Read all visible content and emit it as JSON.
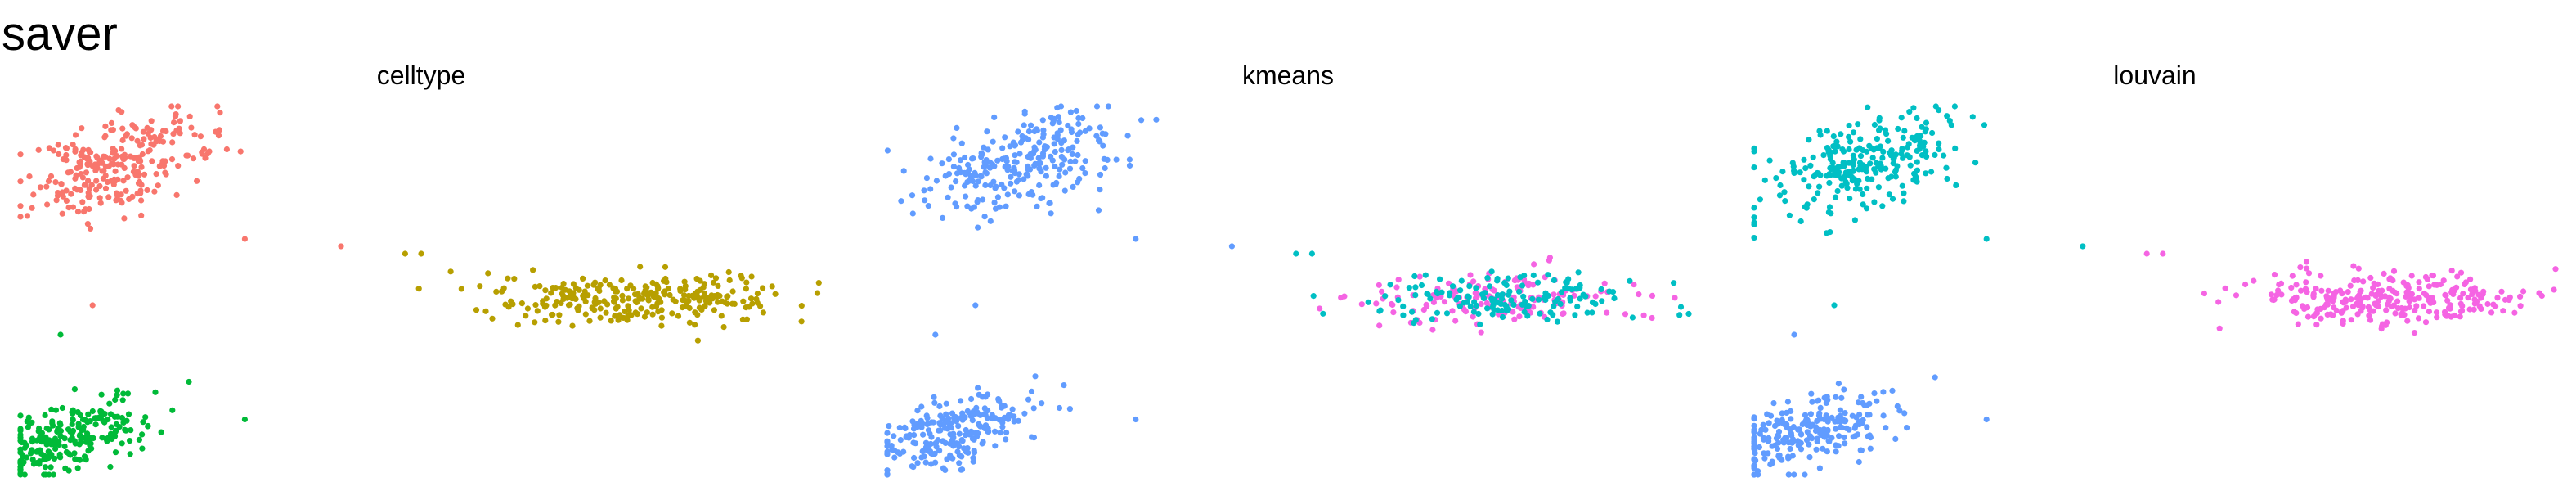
{
  "figure": {
    "title": "saver"
  },
  "colors": {
    "red": "#F8766D",
    "olive": "#B79F00",
    "green": "#00BA38",
    "blue": "#619CFF",
    "cyan": "#00BFC4",
    "magenta": "#F564E3"
  },
  "chart_data": [
    {
      "type": "scatter",
      "title": "celltype",
      "xlim": [
        0,
        100
      ],
      "ylim": [
        0,
        100
      ],
      "axes_visible": false,
      "grid": false,
      "legend": "none",
      "clusters": [
        {
          "center": [
            12,
            84
          ],
          "spread": [
            6,
            6
          ],
          "n": 260,
          "color_key": "red"
        },
        {
          "center": [
            77,
            48
          ],
          "spread": [
            9,
            3.5
          ],
          "n": 280,
          "color_key": "olive"
        },
        {
          "center": [
            6,
            10
          ],
          "spread": [
            5,
            4.5
          ],
          "n": 230,
          "color_key": "green"
        }
      ],
      "outliers": [
        {
          "x": 28,
          "y": 64,
          "color_key": "red"
        },
        {
          "x": 40,
          "y": 62,
          "color_key": "red"
        },
        {
          "x": 48,
          "y": 60,
          "color_key": "olive"
        },
        {
          "x": 50,
          "y": 60,
          "color_key": "olive"
        },
        {
          "x": 9,
          "y": 46,
          "color_key": "red"
        },
        {
          "x": 5,
          "y": 38,
          "color_key": "green"
        },
        {
          "x": 28,
          "y": 15,
          "color_key": "green"
        }
      ]
    },
    {
      "type": "scatter",
      "title": "kmeans",
      "xlim": [
        0,
        100
      ],
      "ylim": [
        0,
        100
      ],
      "axes_visible": false,
      "grid": false,
      "legend": "none",
      "clusters": [
        {
          "center": [
            16,
            84
          ],
          "spread": [
            6,
            6
          ],
          "n": 260,
          "color_key": "blue"
        },
        {
          "center": [
            77,
            48
          ],
          "spread": [
            9,
            3.5
          ],
          "n": 150,
          "color_key": "magenta"
        },
        {
          "center": [
            77,
            48
          ],
          "spread": [
            9,
            3.5
          ],
          "n": 150,
          "color_key": "cyan"
        },
        {
          "center": [
            8,
            11
          ],
          "spread": [
            5,
            4.5
          ],
          "n": 230,
          "color_key": "blue"
        }
      ],
      "outliers": [
        {
          "x": 31,
          "y": 64,
          "color_key": "blue"
        },
        {
          "x": 43,
          "y": 62,
          "color_key": "blue"
        },
        {
          "x": 51,
          "y": 60,
          "color_key": "cyan"
        },
        {
          "x": 53,
          "y": 60,
          "color_key": "cyan"
        },
        {
          "x": 11,
          "y": 46,
          "color_key": "blue"
        },
        {
          "x": 6,
          "y": 38,
          "color_key": "blue"
        },
        {
          "x": 31,
          "y": 15,
          "color_key": "blue"
        }
      ]
    },
    {
      "type": "scatter",
      "title": "louvain",
      "xlim": [
        0,
        100
      ],
      "ylim": [
        0,
        100
      ],
      "axes_visible": false,
      "grid": false,
      "legend": "none",
      "clusters": [
        {
          "center": [
            13,
            84
          ],
          "spread": [
            6,
            6
          ],
          "n": 260,
          "color_key": "cyan"
        },
        {
          "center": [
            79,
            48
          ],
          "spread": [
            9,
            3.5
          ],
          "n": 280,
          "color_key": "magenta"
        },
        {
          "center": [
            6,
            11
          ],
          "spread": [
            5,
            4.5
          ],
          "n": 230,
          "color_key": "blue"
        }
      ],
      "outliers": [
        {
          "x": 29,
          "y": 64,
          "color_key": "cyan"
        },
        {
          "x": 41,
          "y": 62,
          "color_key": "cyan"
        },
        {
          "x": 49,
          "y": 60,
          "color_key": "magenta"
        },
        {
          "x": 51,
          "y": 60,
          "color_key": "magenta"
        },
        {
          "x": 10,
          "y": 46,
          "color_key": "cyan"
        },
        {
          "x": 5,
          "y": 38,
          "color_key": "blue"
        },
        {
          "x": 29,
          "y": 15,
          "color_key": "blue"
        }
      ]
    }
  ]
}
